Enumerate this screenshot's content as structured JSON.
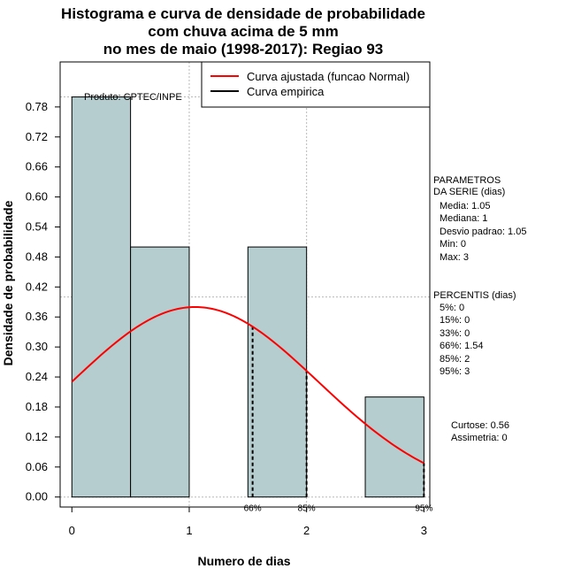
{
  "chart_data": {
    "type": "bar",
    "title_lines": [
      "Histograma e curva de densidade de probabilidade",
      "com chuva acima de 5 mm",
      "no mes de maio (1998-2017): Regiao 93"
    ],
    "xlabel": "Numero de dias",
    "ylabel": "Densidade de probabilidade",
    "xlim": [
      -0.1,
      3.05
    ],
    "ylim": [
      -0.02,
      0.87
    ],
    "x_ticks": [
      0,
      1,
      2,
      3
    ],
    "y_ticks": [
      0.0,
      0.06,
      0.12,
      0.18,
      0.24,
      0.3,
      0.36,
      0.42,
      0.48,
      0.54,
      0.6,
      0.66,
      0.72,
      0.78
    ],
    "histogram": [
      {
        "x0": 0.0,
        "x1": 0.5,
        "density": 0.8
      },
      {
        "x0": 0.5,
        "x1": 1.0,
        "density": 0.5
      },
      {
        "x0": 1.0,
        "x1": 1.5,
        "density": 0.0
      },
      {
        "x0": 1.5,
        "x1": 2.0,
        "density": 0.5
      },
      {
        "x0": 2.0,
        "x1": 2.5,
        "density": 0.0
      },
      {
        "x0": 2.5,
        "x1": 3.0,
        "density": 0.2
      }
    ],
    "normal_fit": {
      "mean": 1.05,
      "sd": 1.05,
      "x_from": 0,
      "x_to": 3
    },
    "percentile_lines": [
      {
        "label": "66%",
        "x": 1.54
      },
      {
        "label": "85%",
        "x": 2.0
      },
      {
        "label": "95%",
        "x": 3.0
      }
    ],
    "grid_y_lines": [
      0.0,
      0.4,
      0.8
    ],
    "grid_x_lines": [
      1,
      2
    ],
    "legend": {
      "position": "top-right",
      "entries": [
        {
          "label": "Curva ajustada (funcao Normal)",
          "color": "#ff0000"
        },
        {
          "label": "Curva empirica",
          "color": "#000000"
        }
      ]
    },
    "producer_note": "Produto: CPTEC/INPE",
    "bar_color": "#b5cdce",
    "curve_color": "#ff0000"
  },
  "side_panel": {
    "params_title": [
      "PARAMETROS",
      "DA SERIE (dias)"
    ],
    "params": [
      "Media: 1.05",
      "Mediana: 1",
      "Desvio padrao: 1.05",
      "Min: 0",
      "Max: 3"
    ],
    "percentis_title": "PERCENTIS (dias)",
    "percentis": [
      "5%: 0",
      "15%: 0",
      "33%: 0",
      "66%: 1.54",
      "85%: 2",
      "95%: 3"
    ],
    "shape": [
      "Curtose: 0.56",
      "Assimetria: 0"
    ]
  }
}
